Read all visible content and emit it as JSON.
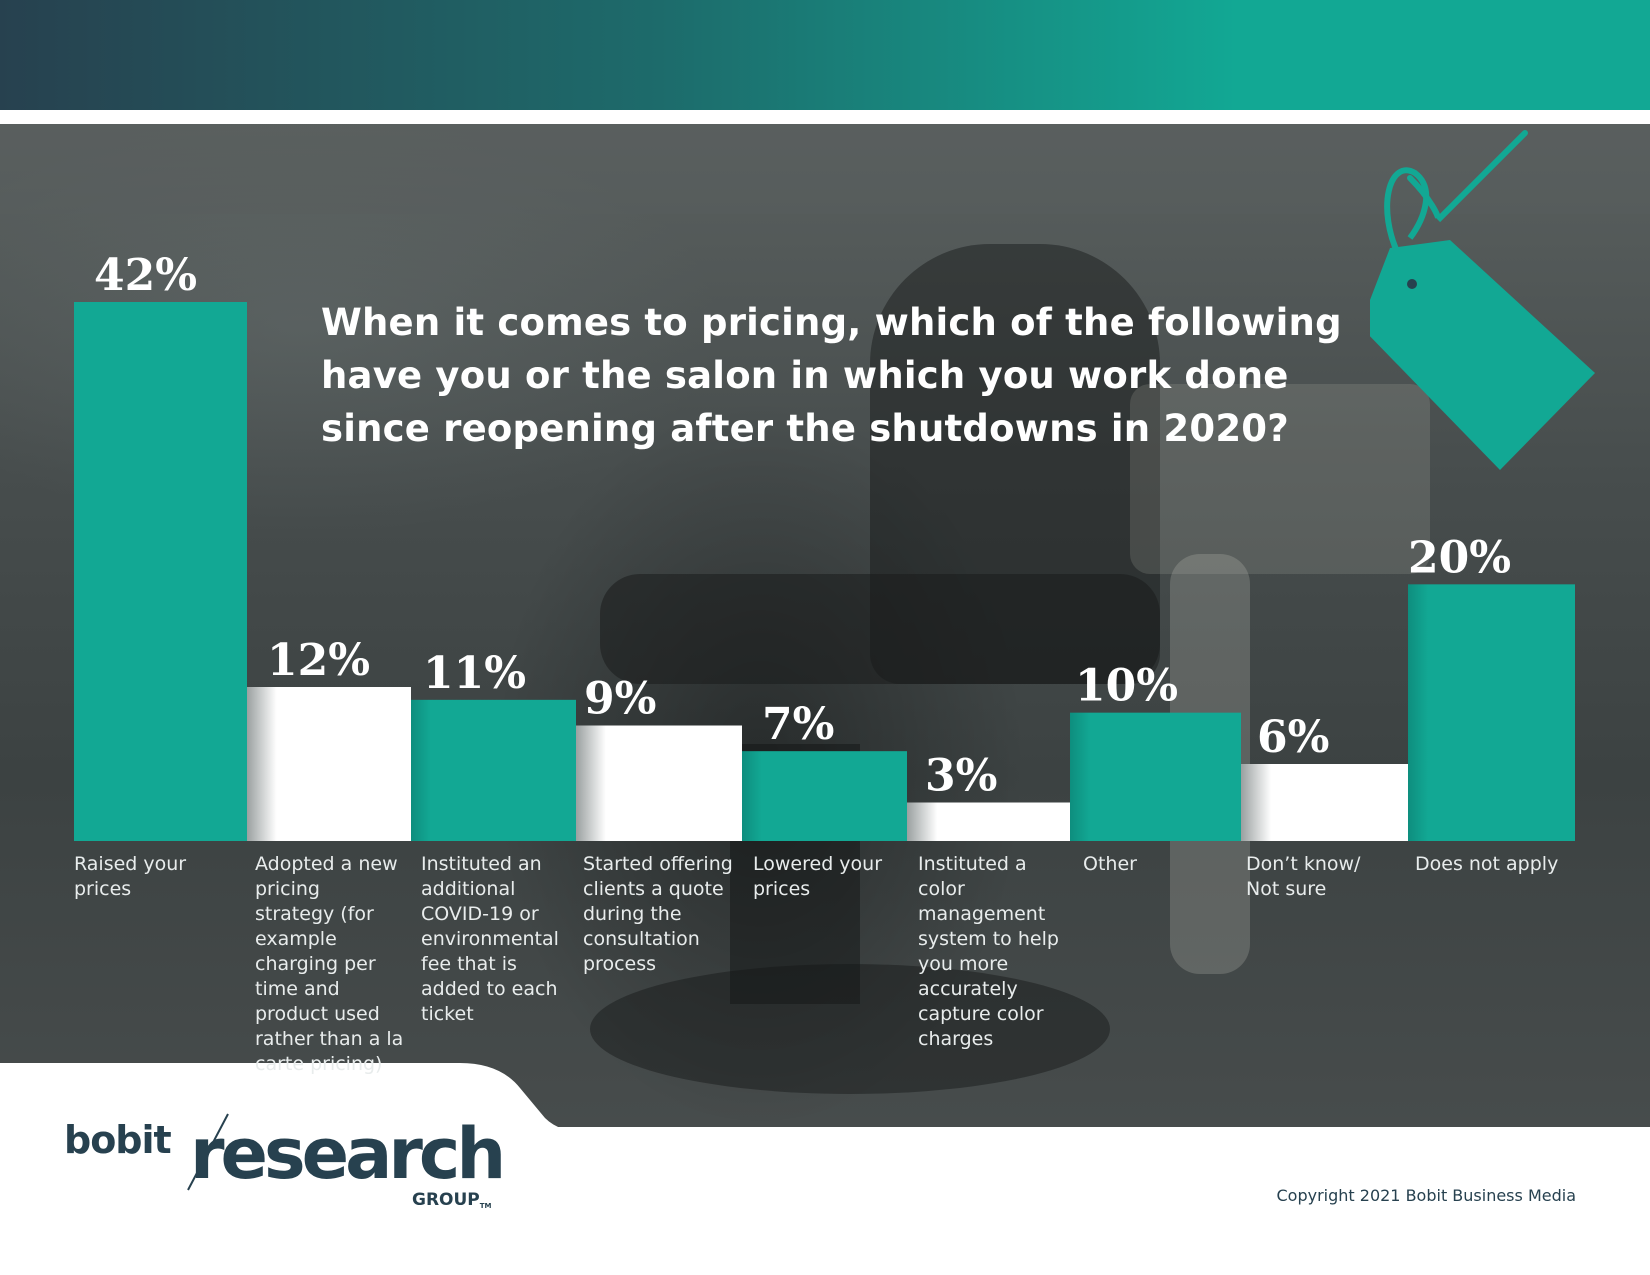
{
  "question": "When it comes to pricing, which of the following have you or the salon in which you work done since reopening after the shutdowns in 2020?",
  "colors": {
    "teal": "#12a894",
    "white": "#ffffff",
    "navy": "#27414f"
  },
  "icons": {
    "tag": "price-tag-icon"
  },
  "chart_data": {
    "type": "bar",
    "title": "When it comes to pricing, which of the following have you or the salon in which you work done since reopening after the shutdowns in 2020?",
    "categories": [
      "Raised your prices",
      "Adopted a new pricing strategy (for example charging per time and product used rather than a la carte pricing)",
      "Instituted an additional COVID-19 or environmental fee that is added to each ticket",
      "Started offering clients a quote during the consultation process",
      "Lowered your prices",
      "Instituted a color management system to help you more accurately capture color charges",
      "Other",
      "Don’t know/ Not sure",
      "Does not apply"
    ],
    "values": [
      42,
      12,
      11,
      9,
      7,
      3,
      10,
      6,
      20
    ],
    "value_labels": [
      "42%",
      "12%",
      "11%",
      "9%",
      "7%",
      "3%",
      "10%",
      "6%",
      "20%"
    ],
    "bar_colors": [
      "#12a894",
      "#ffffff",
      "#12a894",
      "#ffffff",
      "#12a894",
      "#ffffff",
      "#12a894",
      "#ffffff",
      "#12a894"
    ],
    "xlabel": "",
    "ylabel": "",
    "ylim": [
      0,
      42
    ],
    "grid": false,
    "legend": "none"
  },
  "branding": {
    "bobit": "bobit",
    "research": "research",
    "group": "GROUP",
    "tm": "TM"
  },
  "copyright": "Copyright 2021 Bobit Business Media"
}
